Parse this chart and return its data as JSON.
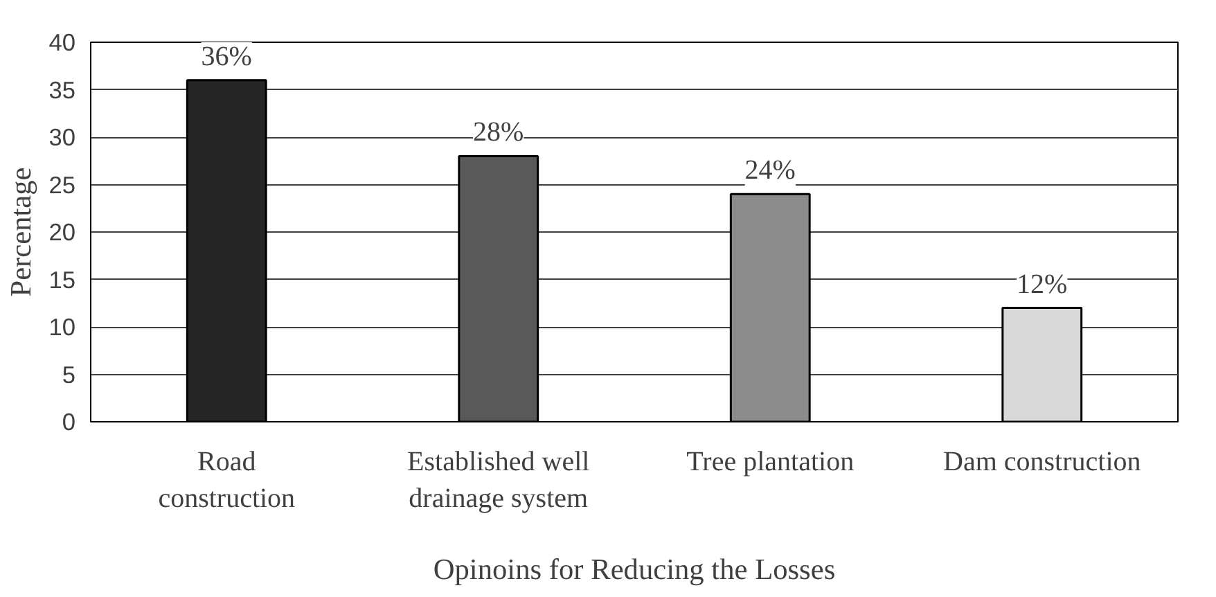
{
  "chart_data": {
    "type": "bar",
    "xlabel": "Opinoins for Reducing the Losses",
    "ylabel": "Percentage",
    "categories": [
      "Road construction",
      "Established well drainage system",
      "Tree plantation",
      "Dam construction"
    ],
    "values": [
      36,
      28,
      24,
      12
    ],
    "colors": [
      "#262626",
      "#595959",
      "#8c8c8c",
      "#d9d9d9"
    ],
    "value_labels": [
      "36%",
      "28%",
      "24%",
      "12%"
    ],
    "ylim": [
      0,
      40
    ],
    "yticks": [
      0,
      5,
      10,
      15,
      20,
      25,
      30,
      35,
      40
    ],
    "grid": "y"
  }
}
